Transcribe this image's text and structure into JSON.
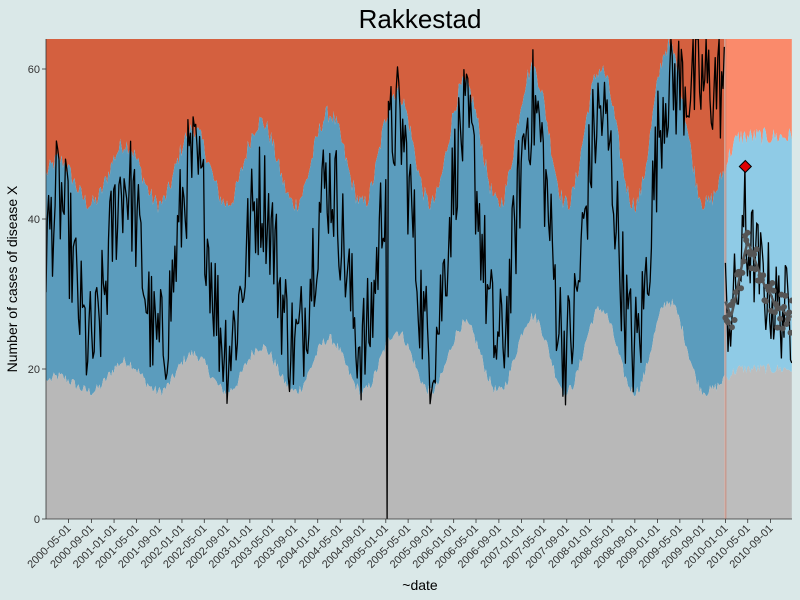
{
  "chart_data": {
    "type": "area",
    "title": "Rakkestad",
    "xlabel": "~date",
    "ylabel": "Number of cases of disease X",
    "xlim": [
      "2000-01-01",
      "2010-12-25"
    ],
    "ylim": [
      0,
      64
    ],
    "y_ticks": [
      0,
      20,
      40,
      60
    ],
    "x_ticks": [
      "2000-05-01",
      "2000-09-01",
      "2001-01-01",
      "2001-05-01",
      "2001-09-01",
      "2002-01-01",
      "2002-05-01",
      "2002-09-01",
      "2003-01-01",
      "2003-05-01",
      "2003-09-01",
      "2004-01-01",
      "2004-05-01",
      "2004-09-01",
      "2005-01-01",
      "2005-05-01",
      "2005-09-01",
      "2006-01-01",
      "2006-05-01",
      "2006-09-01",
      "2007-01-01",
      "2007-05-01",
      "2007-09-01",
      "2008-01-01",
      "2008-05-01",
      "2008-09-01",
      "2009-01-01",
      "2009-05-01",
      "2009-09-01",
      "2010-01-01",
      "2010-05-01",
      "2010-09-01"
    ],
    "historical_period": [
      "2000-01-01",
      "2010-01-01"
    ],
    "forecast_period": [
      "2010-01-01",
      "2010-12-25"
    ],
    "bands": {
      "normal_upper_trough": 17,
      "normal_upper_peaks": [
        {
          "date": "2000-03-01",
          "value": 19
        },
        {
          "date": "2001-03-01",
          "value": 21
        },
        {
          "date": "2002-03-01",
          "value": 22
        },
        {
          "date": "2003-03-01",
          "value": 23
        },
        {
          "date": "2004-03-01",
          "value": 24
        },
        {
          "date": "2005-03-01",
          "value": 25
        },
        {
          "date": "2006-03-01",
          "value": 26
        },
        {
          "date": "2007-03-01",
          "value": 27
        },
        {
          "date": "2008-03-01",
          "value": 28
        },
        {
          "date": "2009-03-01",
          "value": 29
        },
        {
          "date": "2010-04-01",
          "value": 20
        }
      ],
      "medium_upper_trough": 42,
      "medium_upper_peaks": [
        {
          "date": "2000-03-01",
          "value": 48
        },
        {
          "date": "2001-03-01",
          "value": 50
        },
        {
          "date": "2002-03-01",
          "value": 52
        },
        {
          "date": "2003-03-01",
          "value": 53
        },
        {
          "date": "2004-03-01",
          "value": 54
        },
        {
          "date": "2005-03-01",
          "value": 57
        },
        {
          "date": "2006-03-01",
          "value": 58
        },
        {
          "date": "2007-03-01",
          "value": 60
        },
        {
          "date": "2008-03-01",
          "value": 60
        },
        {
          "date": "2009-03-01",
          "value": 63
        },
        {
          "date": "2010-04-01",
          "value": 51
        }
      ]
    },
    "observed_peaks": [
      {
        "date": "2000-03-01",
        "value": 47
      },
      {
        "date": "2001-03-01",
        "value": 49
      },
      {
        "date": "2002-03-01",
        "value": 51
      },
      {
        "date": "2003-03-01",
        "value": 47
      },
      {
        "date": "2004-03-01",
        "value": 49
      },
      {
        "date": "2005-03-01",
        "value": 57
      },
      {
        "date": "2006-03-01",
        "value": 56
      },
      {
        "date": "2007-03-01",
        "value": 59
      },
      {
        "date": "2008-03-01",
        "value": 58
      },
      {
        "date": "2009-03-01",
        "value": 62
      }
    ],
    "observed_dip": {
      "date": "2005-01-08",
      "value": 0
    },
    "forecast_points": [
      {
        "date": "2010-01-01",
        "value": 29
      },
      {
        "date": "2010-02-01",
        "value": 27
      },
      {
        "date": "2010-03-01",
        "value": 30
      },
      {
        "date": "2010-04-01",
        "value": 34
      },
      {
        "date": "2010-05-01",
        "value": 37
      },
      {
        "date": "2010-06-01",
        "value": 35
      },
      {
        "date": "2010-07-01",
        "value": 33
      },
      {
        "date": "2010-08-01",
        "value": 31
      },
      {
        "date": "2010-09-01",
        "value": 30
      },
      {
        "date": "2010-10-01",
        "value": 28
      },
      {
        "date": "2010-11-01",
        "value": 28
      },
      {
        "date": "2010-12-01",
        "value": 27
      }
    ],
    "alert_point": {
      "date": "2010-04-18",
      "value": 47
    },
    "grid": false,
    "colors": {
      "page_background": "#dae8e8",
      "high_zone": "#d4603f",
      "medium_zone": "#5b9cbd",
      "normal_zone": "#b8b8b8",
      "forecast_high": "#fa8a6b",
      "forecast_medium": "#8fcbe6",
      "forecast_normal": "#bdbdbd",
      "observed_line": "#000000",
      "forecast_points": "#555555",
      "alert_marker": "#e00000"
    }
  }
}
